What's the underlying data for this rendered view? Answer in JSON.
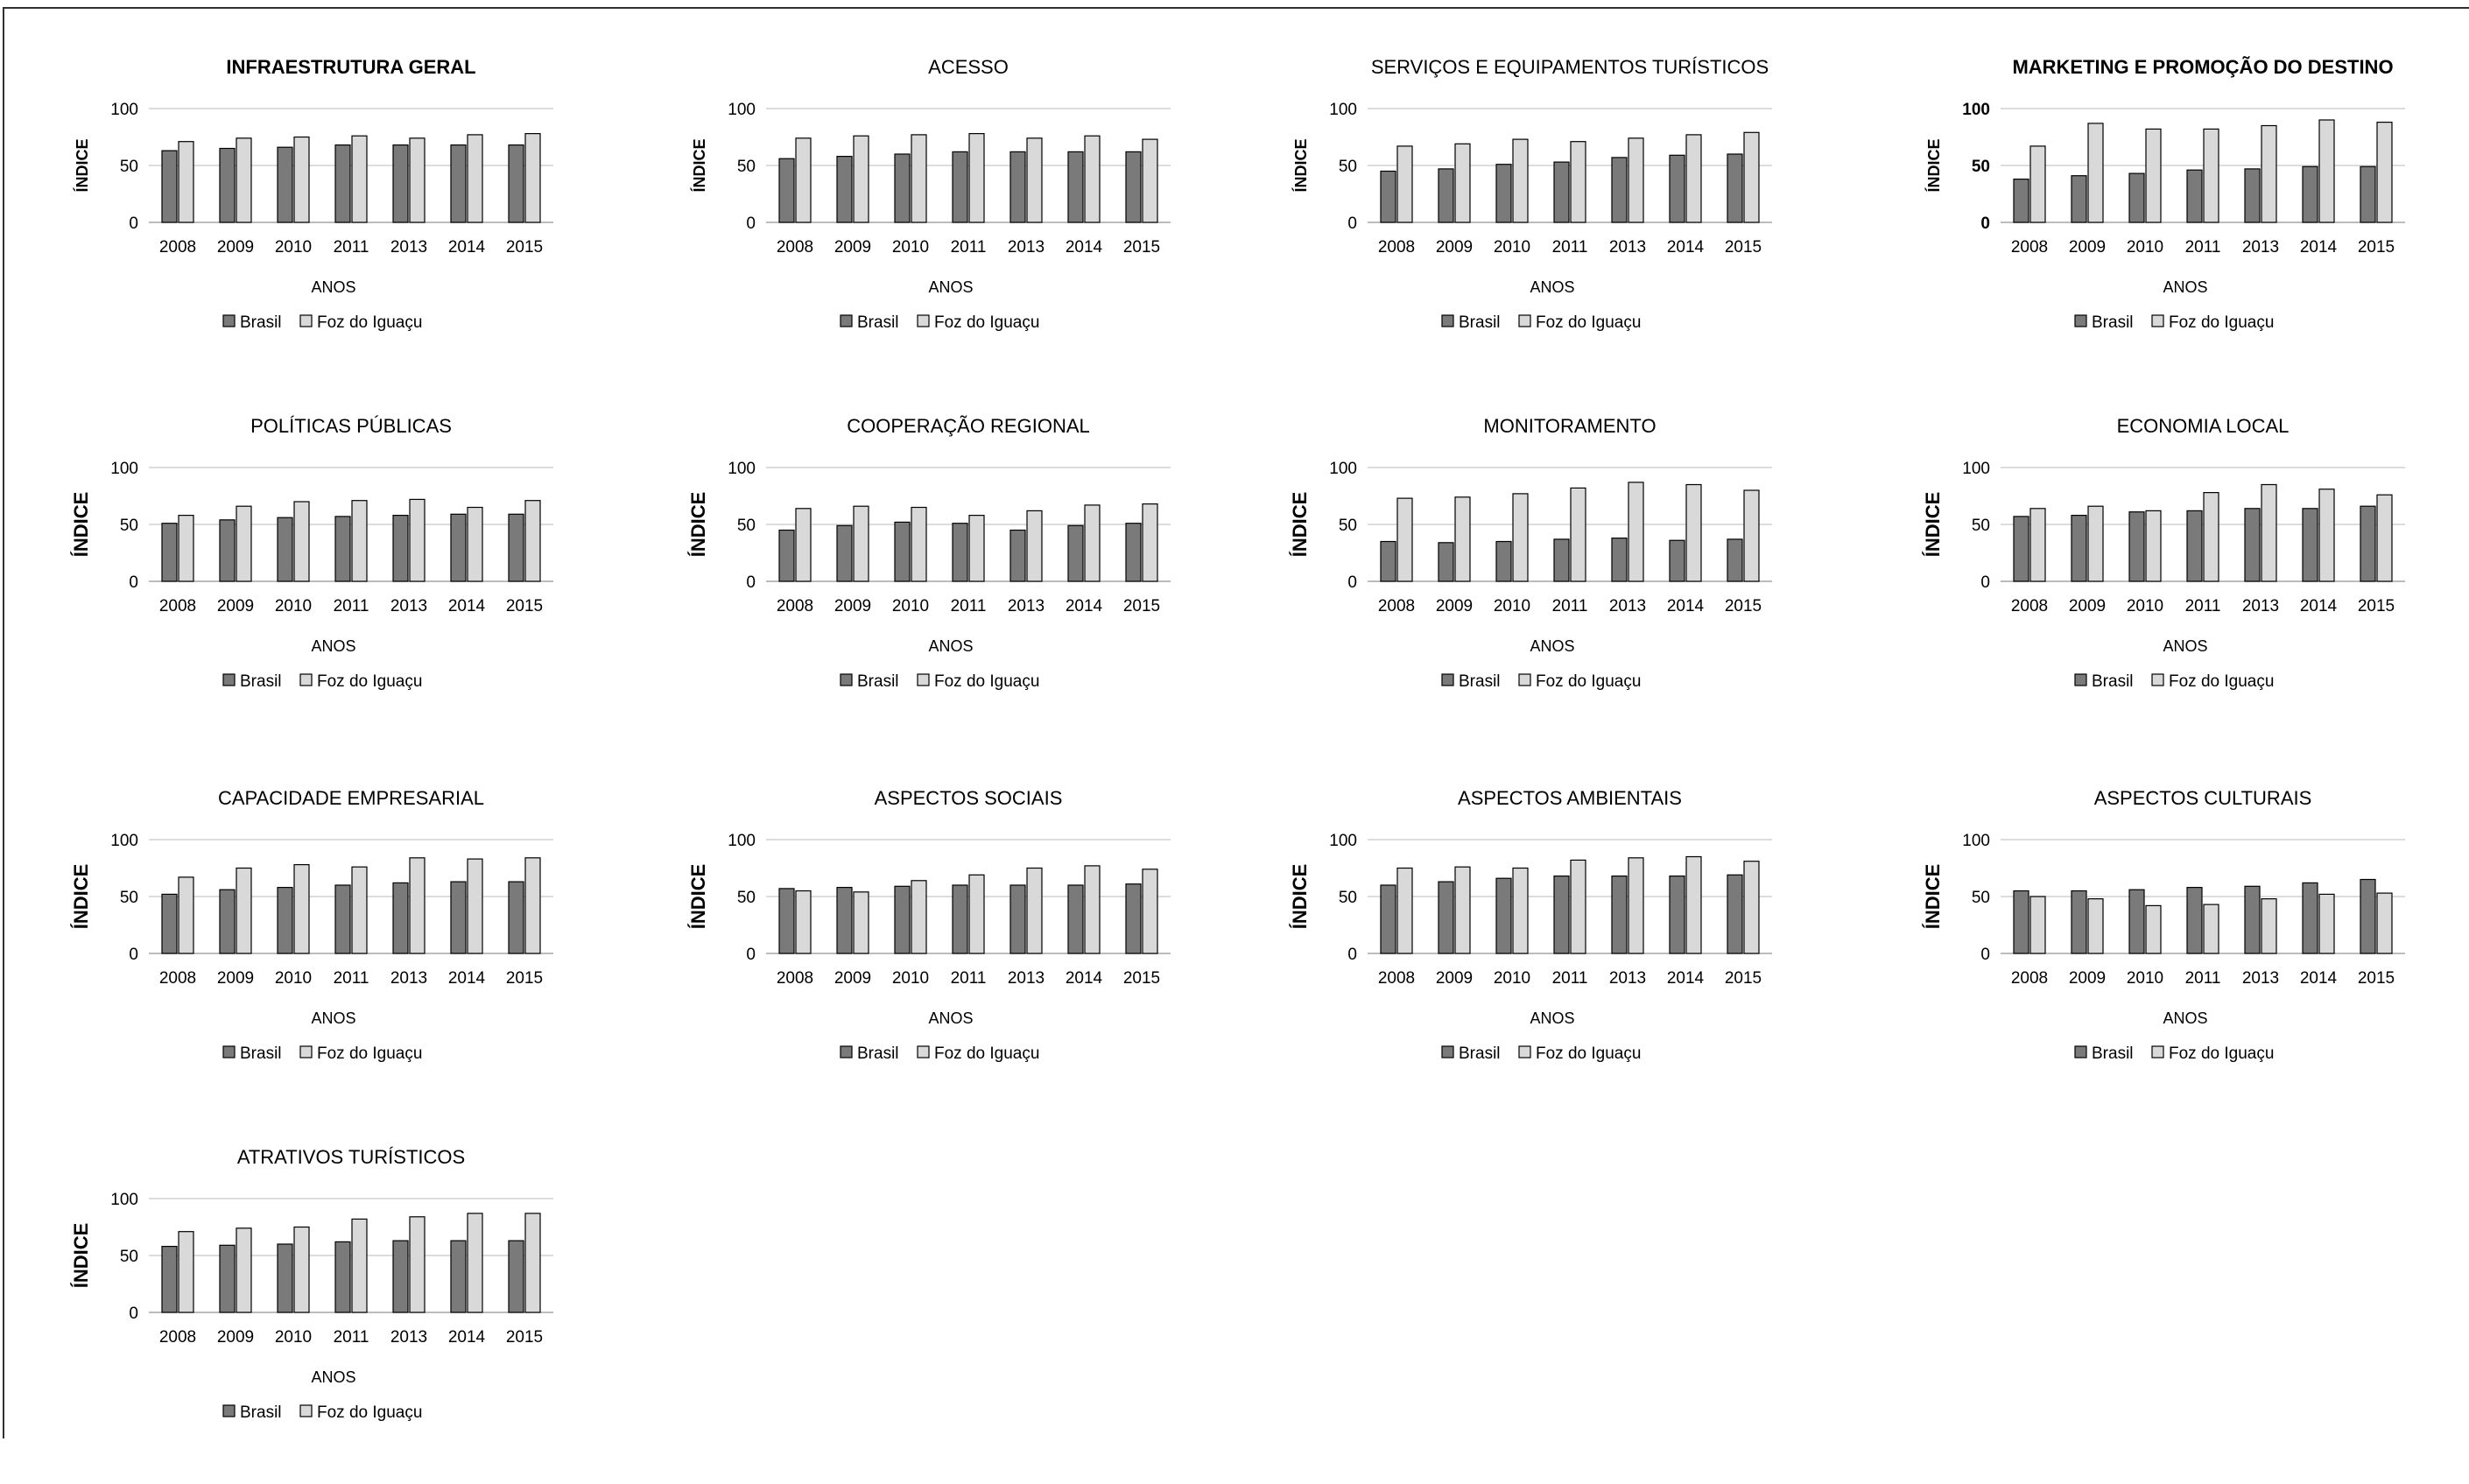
{
  "colors": {
    "brasil": "#7a7a7a",
    "foz": "#d9d9d9",
    "bar_stroke": "#000000",
    "grid": "#d0d0d0",
    "axis": "#a6a6a6"
  },
  "chart_data": [
    {
      "type": "bar",
      "title": "INFRAESTRUTURA GERAL",
      "xlabel": "ANOS",
      "ylabel": "ÍNDICE",
      "ylim": [
        0,
        100
      ],
      "yticks": [
        "0",
        "50",
        "100"
      ],
      "categories": [
        "2008",
        "2009",
        "2010",
        "2011",
        "2013",
        "2014",
        "2015"
      ],
      "series": [
        {
          "name": "Brasil",
          "values": [
            63,
            65,
            66,
            68,
            68,
            68,
            68
          ]
        },
        {
          "name": "Foz do Iguaçu",
          "values": [
            71,
            74,
            75,
            76,
            74,
            77,
            78
          ]
        }
      ],
      "legend": "bottom",
      "grid": true
    },
    {
      "type": "bar",
      "title": "ACESSO",
      "xlabel": "ANOS",
      "ylabel": "ÍNDICE",
      "ylim": [
        0,
        100
      ],
      "yticks": [
        "0",
        "50",
        "100"
      ],
      "categories": [
        "2008",
        "2009",
        "2010",
        "2011",
        "2013",
        "2014",
        "2015"
      ],
      "series": [
        {
          "name": "Brasil",
          "values": [
            56,
            58,
            60,
            62,
            62,
            62,
            62
          ]
        },
        {
          "name": "Foz do Iguaçu",
          "values": [
            74,
            76,
            77,
            78,
            74,
            76,
            73
          ]
        }
      ],
      "legend": "bottom",
      "grid": true
    },
    {
      "type": "bar",
      "title": "SERVIÇOS E EQUIPAMENTOS TURÍSTICOS",
      "xlabel": "ANOS",
      "ylabel": "ÍNDICE",
      "ylim": [
        0,
        100
      ],
      "yticks": [
        "0",
        "50",
        "100"
      ],
      "categories": [
        "2008",
        "2009",
        "2010",
        "2011",
        "2013",
        "2014",
        "2015"
      ],
      "series": [
        {
          "name": "Brasil",
          "values": [
            45,
            47,
            51,
            53,
            57,
            59,
            60
          ]
        },
        {
          "name": "Foz do Iguaçu",
          "values": [
            67,
            69,
            73,
            71,
            74,
            77,
            79
          ]
        }
      ],
      "legend": "bottom",
      "grid": true
    },
    {
      "type": "bar",
      "title": "MARKETING E PROMOÇÃO DO DESTINO",
      "xlabel": "ANOS",
      "ylabel": "ÍNDICE",
      "ylim": [
        0,
        100
      ],
      "yticks": [
        "0",
        "50",
        "100"
      ],
      "categories": [
        "2008",
        "2009",
        "2010",
        "2011",
        "2013",
        "2014",
        "2015"
      ],
      "series": [
        {
          "name": "Brasil",
          "values": [
            38,
            41,
            43,
            46,
            47,
            49,
            49
          ]
        },
        {
          "name": "Foz do Iguaçu",
          "values": [
            67,
            87,
            82,
            82,
            85,
            90,
            88
          ]
        }
      ],
      "legend": "bottom",
      "grid": true
    },
    {
      "type": "bar",
      "title": "POLÍTICAS PÚBLICAS",
      "xlabel": "ANOS",
      "ylabel": "ÍNDICE",
      "ylim": [
        0,
        100
      ],
      "yticks": [
        "0",
        "50",
        "100"
      ],
      "categories": [
        "2008",
        "2009",
        "2010",
        "2011",
        "2013",
        "2014",
        "2015"
      ],
      "series": [
        {
          "name": "Brasil",
          "values": [
            51,
            54,
            56,
            57,
            58,
            59,
            59
          ]
        },
        {
          "name": "Foz do Iguaçu",
          "values": [
            58,
            66,
            70,
            71,
            72,
            65,
            71
          ]
        }
      ],
      "legend": "bottom",
      "grid": true
    },
    {
      "type": "bar",
      "title": "COOPERAÇÃO REGIONAL",
      "xlabel": "ANOS",
      "ylabel": "ÍNDICE",
      "ylim": [
        0,
        100
      ],
      "yticks": [
        "0",
        "50",
        "100"
      ],
      "categories": [
        "2008",
        "2009",
        "2010",
        "2011",
        "2013",
        "2014",
        "2015"
      ],
      "series": [
        {
          "name": "Brasil",
          "values": [
            45,
            49,
            52,
            51,
            45,
            49,
            51
          ]
        },
        {
          "name": "Foz do Iguaçu",
          "values": [
            64,
            66,
            65,
            58,
            62,
            67,
            68
          ]
        }
      ],
      "legend": "bottom",
      "grid": true
    },
    {
      "type": "bar",
      "title": "MONITORAMENTO",
      "xlabel": "ANOS",
      "ylabel": "ÍNDICE",
      "ylim": [
        0,
        100
      ],
      "yticks": [
        "0",
        "50",
        "100"
      ],
      "categories": [
        "2008",
        "2009",
        "2010",
        "2011",
        "2013",
        "2014",
        "2015"
      ],
      "series": [
        {
          "name": "Brasil",
          "values": [
            35,
            34,
            35,
            37,
            38,
            36,
            37
          ]
        },
        {
          "name": "Foz do Iguaçu",
          "values": [
            73,
            74,
            77,
            82,
            87,
            85,
            80
          ]
        }
      ],
      "legend": "bottom",
      "grid": true
    },
    {
      "type": "bar",
      "title": "ECONOMIA LOCAL",
      "xlabel": "ANOS",
      "ylabel": "ÍNDICE",
      "ylim": [
        0,
        100
      ],
      "yticks": [
        "0",
        "50",
        "100"
      ],
      "categories": [
        "2008",
        "2009",
        "2010",
        "2011",
        "2013",
        "2014",
        "2015"
      ],
      "series": [
        {
          "name": "Brasil",
          "values": [
            57,
            58,
            61,
            62,
            64,
            64,
            66
          ]
        },
        {
          "name": "Foz do Iguaçu",
          "values": [
            64,
            66,
            62,
            78,
            85,
            81,
            76
          ]
        }
      ],
      "legend": "bottom",
      "grid": true
    },
    {
      "type": "bar",
      "title": "CAPACIDADE EMPRESARIAL",
      "xlabel": "ANOS",
      "ylabel": "ÍNDICE",
      "ylim": [
        0,
        100
      ],
      "yticks": [
        "0",
        "50",
        "100"
      ],
      "categories": [
        "2008",
        "2009",
        "2010",
        "2011",
        "2013",
        "2014",
        "2015"
      ],
      "series": [
        {
          "name": "Brasil",
          "values": [
            52,
            56,
            58,
            60,
            62,
            63,
            63
          ]
        },
        {
          "name": "Foz do Iguaçu",
          "values": [
            67,
            75,
            78,
            76,
            84,
            83,
            84
          ]
        }
      ],
      "legend": "bottom",
      "grid": true
    },
    {
      "type": "bar",
      "title": "ASPECTOS SOCIAIS",
      "xlabel": "ANOS",
      "ylabel": "ÍNDICE",
      "ylim": [
        0,
        100
      ],
      "yticks": [
        "0",
        "50",
        "100"
      ],
      "categories": [
        "2008",
        "2009",
        "2010",
        "2011",
        "2013",
        "2014",
        "2015"
      ],
      "series": [
        {
          "name": "Brasil",
          "values": [
            57,
            58,
            59,
            60,
            60,
            60,
            61
          ]
        },
        {
          "name": "Foz do Iguaçu",
          "values": [
            55,
            54,
            64,
            69,
            75,
            77,
            74
          ]
        }
      ],
      "legend": "bottom",
      "grid": true
    },
    {
      "type": "bar",
      "title": "ASPECTOS AMBIENTAIS",
      "xlabel": "ANOS",
      "ylabel": "ÍNDICE",
      "ylim": [
        0,
        100
      ],
      "yticks": [
        "0",
        "50",
        "100"
      ],
      "categories": [
        "2008",
        "2009",
        "2010",
        "2011",
        "2013",
        "2014",
        "2015"
      ],
      "series": [
        {
          "name": "Brasil",
          "values": [
            60,
            63,
            66,
            68,
            68,
            68,
            69
          ]
        },
        {
          "name": "Foz do Iguaçu",
          "values": [
            75,
            76,
            75,
            82,
            84,
            85,
            81
          ]
        }
      ],
      "legend": "bottom",
      "grid": true
    },
    {
      "type": "bar",
      "title": "ASPECTOS CULTURAIS",
      "xlabel": "ANOS",
      "ylabel": "ÍNDICE",
      "ylim": [
        0,
        100
      ],
      "yticks": [
        "0",
        "50",
        "100"
      ],
      "categories": [
        "2008",
        "2009",
        "2010",
        "2011",
        "2013",
        "2014",
        "2015"
      ],
      "series": [
        {
          "name": "Brasil",
          "values": [
            55,
            55,
            56,
            58,
            59,
            62,
            65
          ]
        },
        {
          "name": "Foz do Iguaçu",
          "values": [
            50,
            48,
            42,
            43,
            48,
            52,
            53
          ]
        }
      ],
      "legend": "bottom",
      "grid": true
    },
    {
      "type": "bar",
      "title": "ATRATIVOS TURÍSTICOS",
      "xlabel": "ANOS",
      "ylabel": "ÍNDICE",
      "ylim": [
        0,
        100
      ],
      "yticks": [
        "0",
        "50",
        "100"
      ],
      "categories": [
        "2008",
        "2009",
        "2010",
        "2011",
        "2013",
        "2014",
        "2015"
      ],
      "series": [
        {
          "name": "Brasil",
          "values": [
            58,
            59,
            60,
            62,
            63,
            63,
            63
          ]
        },
        {
          "name": "Foz do Iguaçu",
          "values": [
            71,
            74,
            75,
            82,
            84,
            87,
            87
          ]
        }
      ],
      "legend": "bottom",
      "grid": true
    }
  ]
}
